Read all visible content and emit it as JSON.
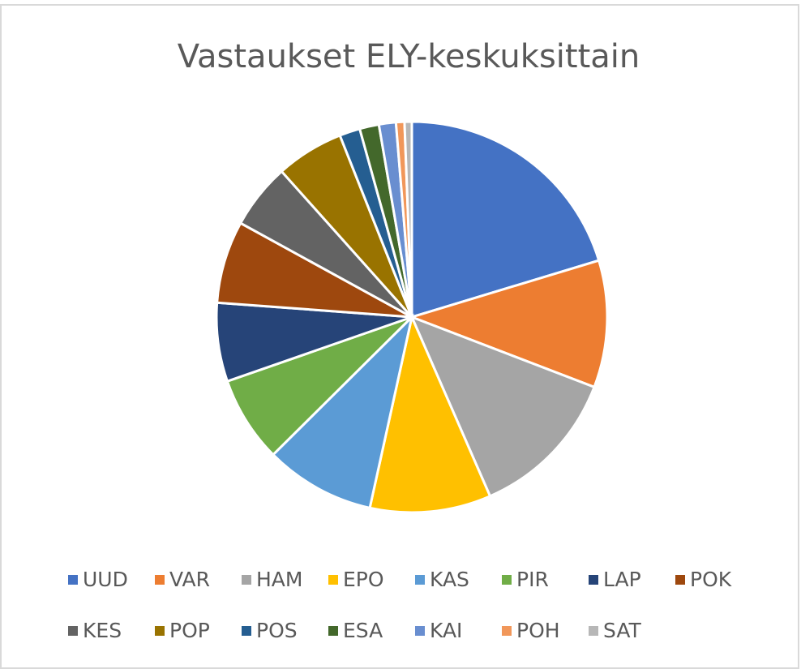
{
  "chart_data": {
    "type": "pie",
    "title": "Vastaukset ELY-keskuksittain",
    "categories": [
      "UUD",
      "VAR",
      "HAM",
      "EPO",
      "KAS",
      "PIR",
      "LAP",
      "POK",
      "KES",
      "POP",
      "POS",
      "ESA",
      "KAI",
      "POH",
      "SAT"
    ],
    "values": [
      20.3,
      10.5,
      12.6,
      10,
      9.1,
      7.1,
      6.5,
      6.8,
      5.4,
      5.6,
      1.7,
      1.6,
      1.4,
      0.7,
      0.6
    ],
    "colors": [
      "#4472c4",
      "#ed7d31",
      "#a5a5a5",
      "#ffc000",
      "#5b9bd5",
      "#70ad47",
      "#264478",
      "#9e480e",
      "#636363",
      "#997300",
      "#255e91",
      "#43682b",
      "#698ed0",
      "#f1975a",
      "#b7b7b7"
    ],
    "legend": "bottom"
  }
}
